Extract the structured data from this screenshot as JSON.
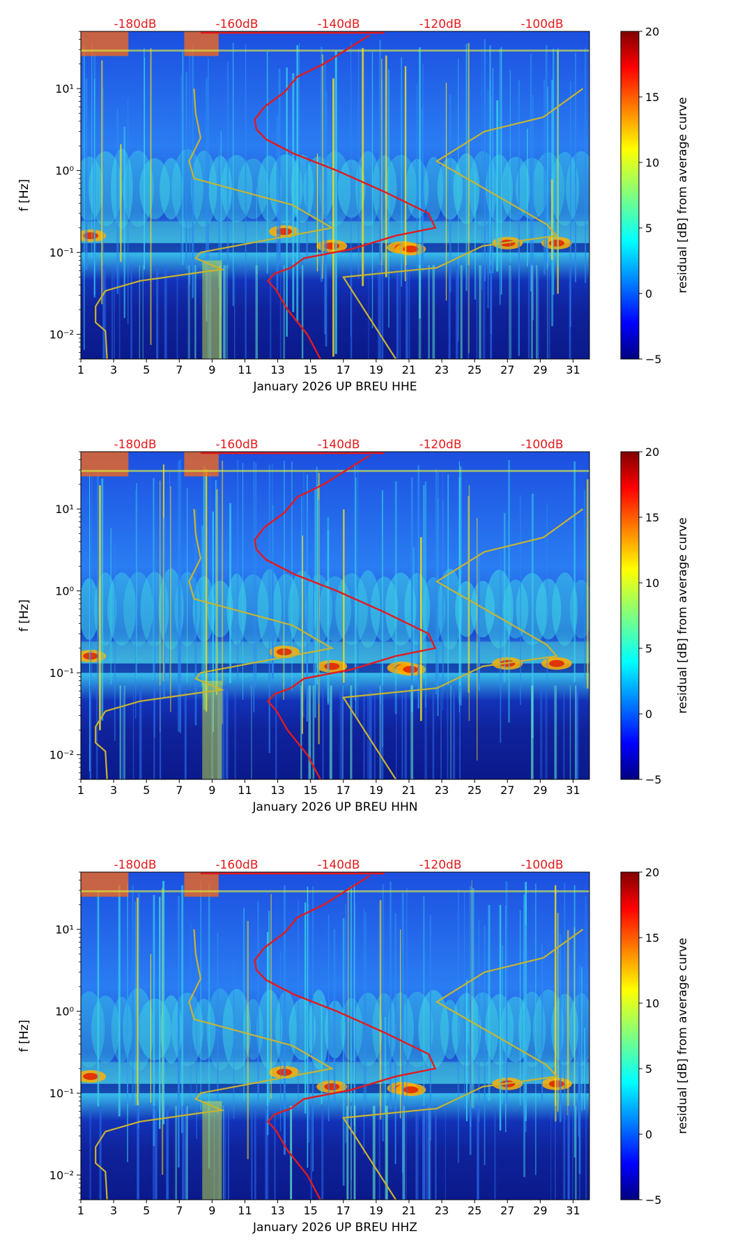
{
  "colors": {
    "spectrogram_background": "#1a3fc4",
    "noise_model_line": "#c8b430",
    "median_psd_line": "#e31a1c",
    "db_label_text": "#e31a1c",
    "colormap": [
      "#00007f",
      "#0000ff",
      "#007fff",
      "#00ffff",
      "#7fff7f",
      "#ffff00",
      "#ff7f00",
      "#ff0000",
      "#7f0000"
    ]
  },
  "chart_data": [
    {
      "type": "heatmap",
      "channel": "HHE",
      "xlabel": "January 2026 UP BREU  HHE",
      "ylabel": "f [Hz]",
      "xlim": [
        1,
        32
      ],
      "ylim": [
        0.005,
        50
      ],
      "xticks": [
        "1",
        "3",
        "5",
        "7",
        "9",
        "11",
        "13",
        "15",
        "17",
        "19",
        "21",
        "23",
        "25",
        "27",
        "29",
        "31"
      ],
      "yticks": [
        "10⁻²",
        "10⁻¹",
        "10⁰",
        "10¹"
      ],
      "top_axis_labels": [
        "-180dB",
        "-160dB",
        "-140dB",
        "-120dB",
        "-100dB"
      ],
      "colorbar": {
        "label": "residual [dB] from average curve",
        "range": [
          -5,
          20
        ],
        "ticks": [
          "20",
          "15",
          "10",
          "5",
          "0",
          "−5"
        ]
      }
    },
    {
      "type": "heatmap",
      "channel": "HHN",
      "xlabel": "January 2026 UP BREU  HHN",
      "ylabel": "f [Hz]",
      "xlim": [
        1,
        32
      ],
      "ylim": [
        0.005,
        50
      ],
      "xticks": [
        "1",
        "3",
        "5",
        "7",
        "9",
        "11",
        "13",
        "15",
        "17",
        "19",
        "21",
        "23",
        "25",
        "27",
        "29",
        "31"
      ],
      "yticks": [
        "10⁻²",
        "10⁻¹",
        "10⁰",
        "10¹"
      ],
      "top_axis_labels": [
        "-180dB",
        "-160dB",
        "-140dB",
        "-120dB",
        "-100dB"
      ],
      "colorbar": {
        "label": "residual [dB] from average curve",
        "range": [
          -5,
          20
        ],
        "ticks": [
          "20",
          "15",
          "10",
          "5",
          "0",
          "−5"
        ]
      }
    },
    {
      "type": "heatmap",
      "channel": "HHZ",
      "xlabel": "January 2026 UP BREU  HHZ",
      "ylabel": "f [Hz]",
      "xlim": [
        1,
        32
      ],
      "ylim": [
        0.005,
        50
      ],
      "xticks": [
        "1",
        "3",
        "5",
        "7",
        "9",
        "11",
        "13",
        "15",
        "17",
        "19",
        "21",
        "23",
        "25",
        "27",
        "29",
        "31"
      ],
      "yticks": [
        "10⁻²",
        "10⁻¹",
        "10⁰",
        "10¹"
      ],
      "top_axis_labels": [
        "-180dB",
        "-160dB",
        "-140dB",
        "-120dB",
        "-100dB"
      ],
      "colorbar": {
        "label": "residual [dB] from average curve",
        "range": [
          -5,
          20
        ],
        "ticks": [
          "20",
          "15",
          "10",
          "5",
          "0",
          "−5"
        ]
      }
    }
  ],
  "noise_model": {
    "name": "Peterson noise model bounds (yellow)",
    "x_day_low": [
      2.6,
      2.5,
      1.9,
      1.9,
      2.5,
      4.6,
      8.5,
      9.6,
      8.0,
      8.3,
      16.3,
      13.9,
      7.9,
      7.6,
      8.3,
      8.0,
      7.9
    ],
    "x_day_high": [
      20.2,
      17.0,
      22.7,
      25.5,
      30.0,
      29.4,
      22.7,
      25.6,
      29.2,
      31.6
    ],
    "freq_low": [
      0.005,
      0.011,
      0.014,
      0.022,
      0.034,
      0.045,
      0.058,
      0.062,
      0.085,
      0.1,
      0.2,
      0.38,
      0.8,
      1.3,
      2.5,
      5.0,
      10.0
    ],
    "freq_high": [
      0.005,
      0.05,
      0.065,
      0.12,
      0.16,
      0.22,
      1.3,
      3.0,
      4.5,
      10.0
    ]
  },
  "median_psd": {
    "name": "Median PSD curve (red, plotted on top dB axis)",
    "day": [
      15.6,
      14.8,
      13.6,
      12.9,
      12.4,
      12.8,
      13.8,
      14.6,
      17.5,
      20.2,
      22.6,
      22.2,
      19.5,
      16.6,
      14.0,
      12.3,
      11.7,
      11.6,
      12.2,
      13.4,
      14.2,
      15.8,
      17.2,
      18.6
    ],
    "freq": [
      0.005,
      0.01,
      0.02,
      0.035,
      0.045,
      0.055,
      0.065,
      0.085,
      0.11,
      0.16,
      0.2,
      0.3,
      0.55,
      1.0,
      1.6,
      2.4,
      3.2,
      4.2,
      6.0,
      9.0,
      14.0,
      20.0,
      30.0,
      45.0
    ]
  }
}
